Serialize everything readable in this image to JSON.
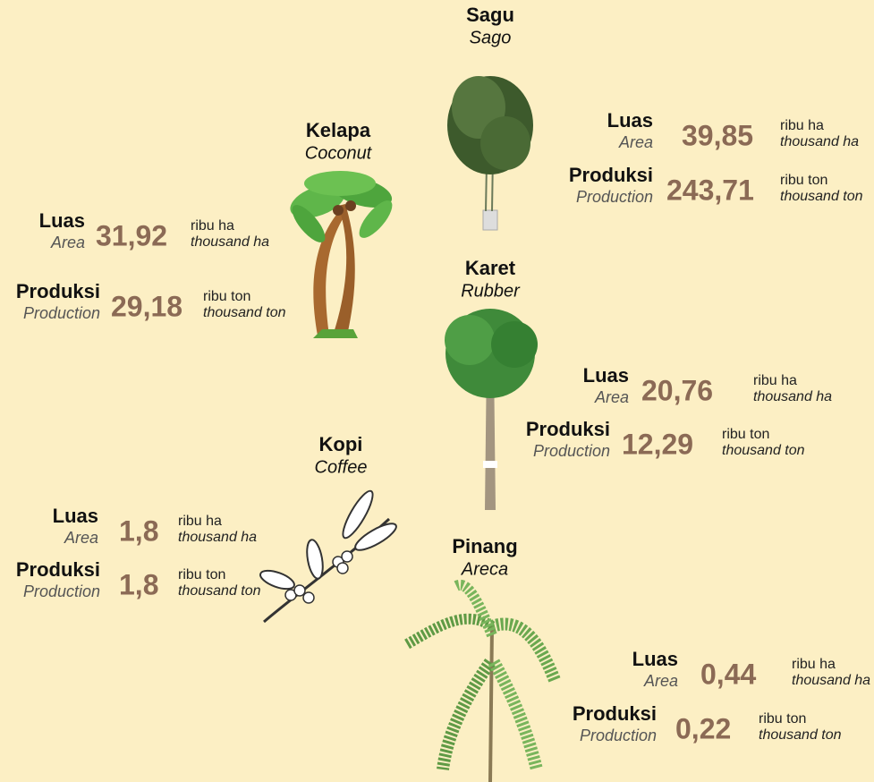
{
  "crops": [
    {
      "name": "Sagu",
      "name_en": "Sago",
      "area": {
        "label": "Luas",
        "label_en": "Area",
        "value": "39,85",
        "unit": "ribu ha",
        "unit_en": "thousand ha"
      },
      "production": {
        "label": "Produksi",
        "label_en": "Production",
        "value": "243,71",
        "unit": "ribu ton",
        "unit_en": "thousand ton"
      }
    },
    {
      "name": "Kelapa",
      "name_en": "Coconut",
      "area": {
        "label": "Luas",
        "label_en": "Area",
        "value": "31,92",
        "unit": "ribu ha",
        "unit_en": "thousand ha"
      },
      "production": {
        "label": "Produksi",
        "label_en": "Production",
        "value": "29,18",
        "unit": "ribu ton",
        "unit_en": "thousand ton"
      }
    },
    {
      "name": "Karet",
      "name_en": "Rubber",
      "area": {
        "label": "Luas",
        "label_en": "Area",
        "value": "20,76",
        "unit": "ribu ha",
        "unit_en": "thousand ha"
      },
      "production": {
        "label": "Produksi",
        "label_en": "Production",
        "value": "12,29",
        "unit": "ribu ton",
        "unit_en": "thousand ton"
      }
    },
    {
      "name": "Kopi",
      "name_en": "Coffee",
      "area": {
        "label": "Luas",
        "label_en": "Area",
        "value": "1,8",
        "unit": "ribu ha",
        "unit_en": "thousand ha"
      },
      "production": {
        "label": "Produksi",
        "label_en": "Production",
        "value": "1,8",
        "unit": "ribu ton",
        "unit_en": "thousand ton"
      }
    },
    {
      "name": "Pinang",
      "name_en": "Areca",
      "area": {
        "label": "Luas",
        "label_en": "Area",
        "value": "0,44",
        "unit": "ribu ha",
        "unit_en": "thousand ha"
      },
      "production": {
        "label": "Produksi",
        "label_en": "Production",
        "value": "0,22",
        "unit": "ribu ton",
        "unit_en": "thousand ton"
      }
    }
  ]
}
